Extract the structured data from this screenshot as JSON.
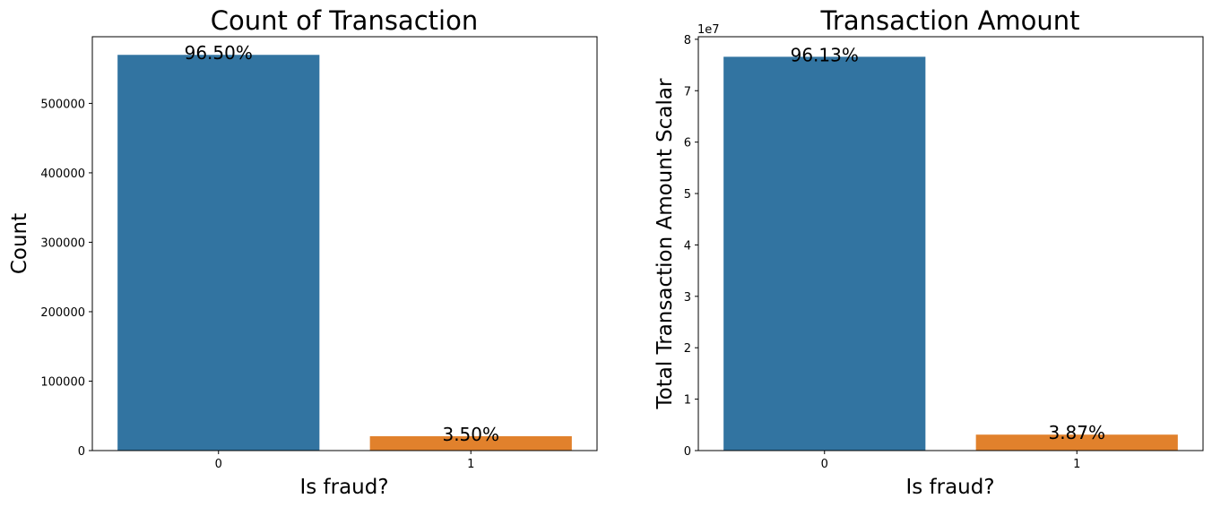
{
  "chart_data": [
    {
      "type": "bar",
      "title": "Count of Transaction",
      "xlabel": "Is fraud?",
      "ylabel": "Count",
      "categories": [
        "0",
        "1"
      ],
      "values": [
        569877,
        20663
      ],
      "colors": [
        "#3274a1",
        "#e1812c"
      ],
      "data_labels": [
        "96.50%",
        "3.50%"
      ],
      "ylim": [
        0,
        596000
      ],
      "yticks": [
        0,
        100000,
        200000,
        300000,
        400000,
        500000
      ],
      "ytick_labels": [
        "0",
        "100000",
        "200000",
        "300000",
        "400000",
        "500000"
      ],
      "y_offset_label": "",
      "grid": false
    },
    {
      "type": "bar",
      "title": "Transaction Amount",
      "xlabel": "Is fraud?",
      "ylabel": "Total Transaction Amount Scalar",
      "categories": [
        "0",
        "1"
      ],
      "values": [
        7.66,
        0.31
      ],
      "colors": [
        "#3274a1",
        "#e1812c"
      ],
      "data_labels": [
        "96.13%",
        "3.87%"
      ],
      "ylim": [
        0,
        8.05
      ],
      "yticks": [
        0,
        1,
        2,
        3,
        4,
        5,
        6,
        7,
        8
      ],
      "ytick_labels": [
        "0",
        "1",
        "2",
        "3",
        "4",
        "5",
        "6",
        "7",
        "8"
      ],
      "y_offset_label": "1e7",
      "grid": false
    }
  ]
}
